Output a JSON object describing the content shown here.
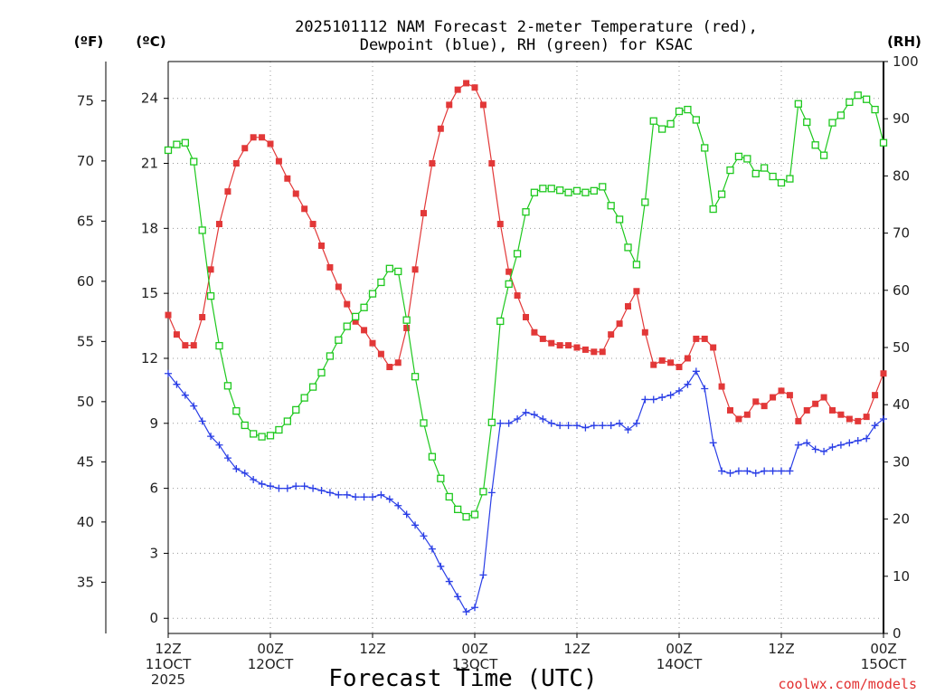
{
  "chart_data": {
    "type": "line",
    "title_line1": "2025101112 NAM Forecast 2-meter Temperature (red),",
    "title_line2": "Dewpoint (blue), RH (green) for KSAC",
    "xlabel": "Forecast Time (UTC)",
    "credit": "coolwx.com/models",
    "unit_f": "(ºF)",
    "unit_c": "(ºC)",
    "unit_rh": "(RH)",
    "hours": [
      0,
      1,
      2,
      3,
      4,
      5,
      6,
      7,
      8,
      9,
      10,
      11,
      12,
      13,
      14,
      15,
      16,
      17,
      18,
      19,
      20,
      21,
      22,
      23,
      24,
      25,
      26,
      27,
      28,
      29,
      30,
      31,
      32,
      33,
      34,
      35,
      36,
      37,
      38,
      39,
      40,
      41,
      42,
      43,
      44,
      45,
      46,
      47,
      48,
      49,
      50,
      51,
      52,
      53,
      54,
      55,
      56,
      57,
      58,
      59,
      60,
      61,
      62,
      63,
      64,
      65,
      66,
      67,
      68,
      69,
      70,
      71,
      72,
      73,
      74,
      75,
      76,
      77,
      78,
      79,
      80,
      81,
      82,
      83,
      84
    ],
    "x_range": [
      0,
      84
    ],
    "y_c_range": [
      -0.7,
      25.7
    ],
    "y_f_range": [
      30.74,
      78.26
    ],
    "y_rh_range": [
      0,
      100
    ],
    "c_ticks": [
      0,
      3,
      6,
      9,
      12,
      15,
      18,
      21,
      24
    ],
    "f_ticks": [
      35,
      40,
      45,
      50,
      55,
      60,
      65,
      70,
      75
    ],
    "rh_ticks": [
      0,
      10,
      20,
      30,
      40,
      50,
      60,
      70,
      80,
      90,
      100
    ],
    "x_ticks": [
      {
        "hour": 0,
        "l1": "12Z",
        "l2": "11OCT",
        "l3": "2025"
      },
      {
        "hour": 12,
        "l1": "00Z",
        "l2": "12OCT",
        "l3": ""
      },
      {
        "hour": 24,
        "l1": "12Z",
        "l2": "",
        "l3": ""
      },
      {
        "hour": 36,
        "l1": "00Z",
        "l2": "13OCT",
        "l3": ""
      },
      {
        "hour": 48,
        "l1": "12Z",
        "l2": "",
        "l3": ""
      },
      {
        "hour": 60,
        "l1": "00Z",
        "l2": "14OCT",
        "l3": ""
      },
      {
        "hour": 72,
        "l1": "12Z",
        "l2": "",
        "l3": ""
      },
      {
        "hour": 84,
        "l1": "00Z",
        "l2": "15OCT",
        "l3": ""
      }
    ],
    "series": [
      {
        "name": "Temperature",
        "unit": "C",
        "color": "#e23838",
        "marker": "filled-square",
        "values": [
          14.0,
          13.1,
          12.6,
          12.6,
          13.9,
          16.1,
          18.2,
          19.7,
          21.0,
          21.7,
          22.2,
          22.2,
          21.9,
          21.1,
          20.3,
          19.6,
          18.9,
          18.2,
          17.2,
          16.2,
          15.3,
          14.5,
          13.7,
          13.3,
          12.7,
          12.2,
          11.6,
          11.8,
          13.4,
          16.1,
          18.7,
          21.0,
          22.6,
          23.7,
          24.4,
          24.7,
          24.5,
          23.7,
          21.0,
          18.2,
          16.0,
          14.9,
          13.9,
          13.2,
          12.9,
          12.7,
          12.6,
          12.6,
          12.5,
          12.4,
          12.3,
          12.3,
          13.1,
          13.6,
          14.4,
          15.1,
          13.2,
          11.7,
          11.9,
          11.8,
          11.6,
          12.0,
          12.9,
          12.9,
          12.5,
          10.7,
          9.6,
          9.2,
          9.4,
          10.0,
          9.8,
          10.2,
          10.5,
          10.3,
          9.1,
          9.6,
          9.9,
          10.2,
          9.6,
          9.4,
          9.2,
          9.1,
          9.3,
          10.3,
          11.3
        ]
      },
      {
        "name": "Dewpoint",
        "unit": "C",
        "color": "#2a3ee6",
        "marker": "plus",
        "values": [
          11.3,
          10.8,
          10.3,
          9.8,
          9.1,
          8.4,
          8.0,
          7.4,
          6.9,
          6.7,
          6.4,
          6.2,
          6.1,
          6.0,
          6.0,
          6.1,
          6.1,
          6.0,
          5.9,
          5.8,
          5.7,
          5.7,
          5.6,
          5.6,
          5.6,
          5.7,
          5.5,
          5.2,
          4.8,
          4.3,
          3.8,
          3.2,
          2.4,
          1.7,
          1.0,
          0.3,
          0.5,
          2.0,
          5.8,
          9.0,
          9.0,
          9.2,
          9.5,
          9.4,
          9.2,
          9.0,
          8.9,
          8.9,
          8.9,
          8.8,
          8.9,
          8.9,
          8.9,
          9.0,
          8.7,
          9.0,
          10.1,
          10.1,
          10.2,
          10.3,
          10.5,
          10.8,
          11.4,
          10.6,
          8.1,
          6.8,
          6.7,
          6.8,
          6.8,
          6.7,
          6.8,
          6.8,
          6.8,
          6.8,
          8.0,
          8.1,
          7.8,
          7.7,
          7.9,
          8.0,
          8.1,
          8.2,
          8.3,
          8.9,
          9.2
        ]
      },
      {
        "name": "RH",
        "unit": "%",
        "color": "#1ec81e",
        "marker": "open-square",
        "values": [
          84.5,
          85.5,
          85.8,
          82.5,
          70.5,
          59.0,
          50.3,
          43.3,
          38.9,
          36.4,
          34.9,
          34.4,
          34.6,
          35.6,
          37.1,
          39.1,
          41.2,
          43.1,
          45.6,
          48.5,
          51.3,
          53.7,
          55.4,
          57.0,
          59.4,
          61.4,
          63.8,
          63.3,
          54.8,
          44.9,
          36.8,
          30.9,
          27.1,
          23.9,
          21.7,
          20.4,
          20.8,
          24.8,
          36.9,
          54.6,
          61.1,
          66.4,
          73.7,
          77.1,
          77.8,
          77.8,
          77.5,
          77.1,
          77.4,
          77.1,
          77.4,
          78.1,
          74.8,
          72.4,
          67.5,
          64.5,
          75.4,
          89.6,
          88.2,
          89.1,
          91.3,
          91.6,
          89.8,
          84.9,
          74.2,
          76.8,
          81.0,
          83.4,
          83.0,
          80.4,
          81.4,
          79.9,
          78.8,
          79.5,
          92.6,
          89.4,
          85.4,
          83.6,
          89.3,
          90.6,
          92.9,
          94.1,
          93.4,
          91.6,
          85.8
        ]
      }
    ]
  }
}
